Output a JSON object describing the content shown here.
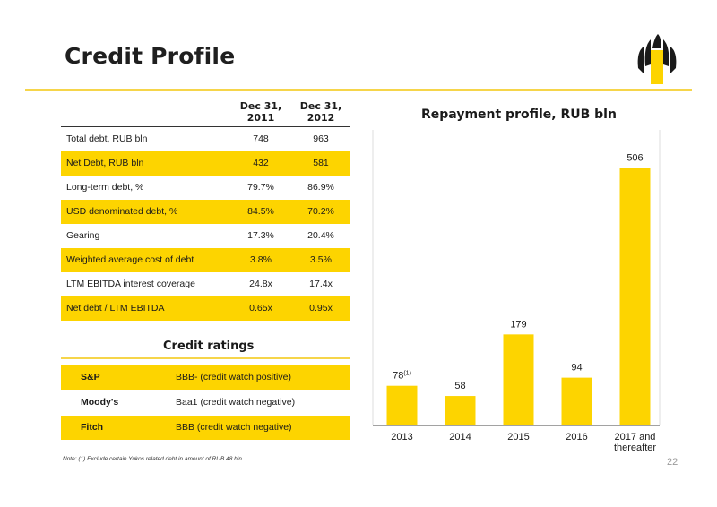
{
  "page": {
    "title": "Credit Profile",
    "page_number": "22",
    "note": "Note: (1) Exclude certain Yukos related debt in amount of RUB 48 bln"
  },
  "metrics_table": {
    "columns": [
      "Dec 31,\n2011",
      "Dec 31,\n2012"
    ],
    "rows": [
      {
        "label": "Total debt, RUB bln",
        "values": [
          "748",
          "963"
        ],
        "highlight": false
      },
      {
        "label": "Net Debt, RUB bln",
        "values": [
          "432",
          "581"
        ],
        "highlight": true
      },
      {
        "label": "Long-term debt, %",
        "values": [
          "79.7%",
          "86.9%"
        ],
        "highlight": false
      },
      {
        "label": "USD denominated debt, %",
        "values": [
          "84.5%",
          "70.2%"
        ],
        "highlight": true
      },
      {
        "label": "Gearing",
        "values": [
          "17.3%",
          "20.4%"
        ],
        "highlight": false
      },
      {
        "label": "Weighted average cost of debt",
        "values": [
          "3.8%",
          "3.5%"
        ],
        "highlight": true
      },
      {
        "label": "LTM EBITDA interest coverage",
        "values": [
          "24.8x",
          "17.4x"
        ],
        "highlight": false
      },
      {
        "label": "Net debt / LTM EBITDA",
        "values": [
          "0.65x",
          "0.95x"
        ],
        "highlight": true
      }
    ]
  },
  "ratings": {
    "title": "Credit ratings",
    "rows": [
      {
        "agency": "S&P",
        "rating": "BBB- (credit watch positive)",
        "highlight": true
      },
      {
        "agency": "Moody's",
        "rating": "Baa1 (credit watch negative)",
        "highlight": false
      },
      {
        "agency": "Fitch",
        "rating": "BBB (credit watch negative)",
        "highlight": true
      }
    ]
  },
  "colors": {
    "accent": "#fdd400",
    "rule": "#f6d54a",
    "text": "#1a1a1a"
  },
  "chart_data": {
    "type": "bar",
    "title": "Repayment profile, RUB bln",
    "categories": [
      "2013",
      "2014",
      "2015",
      "2016",
      "2017 and\nthereafter"
    ],
    "values": [
      78,
      58,
      179,
      94,
      506
    ],
    "data_labels": [
      "78",
      "58",
      "179",
      "94",
      "506"
    ],
    "annotations": [
      {
        "category": "2013",
        "superscript": "(1)"
      }
    ],
    "xlabel": "",
    "ylabel": "",
    "ylim": [
      0,
      560
    ],
    "grid": false,
    "legend": "none",
    "bar_color": "#fdd400"
  }
}
